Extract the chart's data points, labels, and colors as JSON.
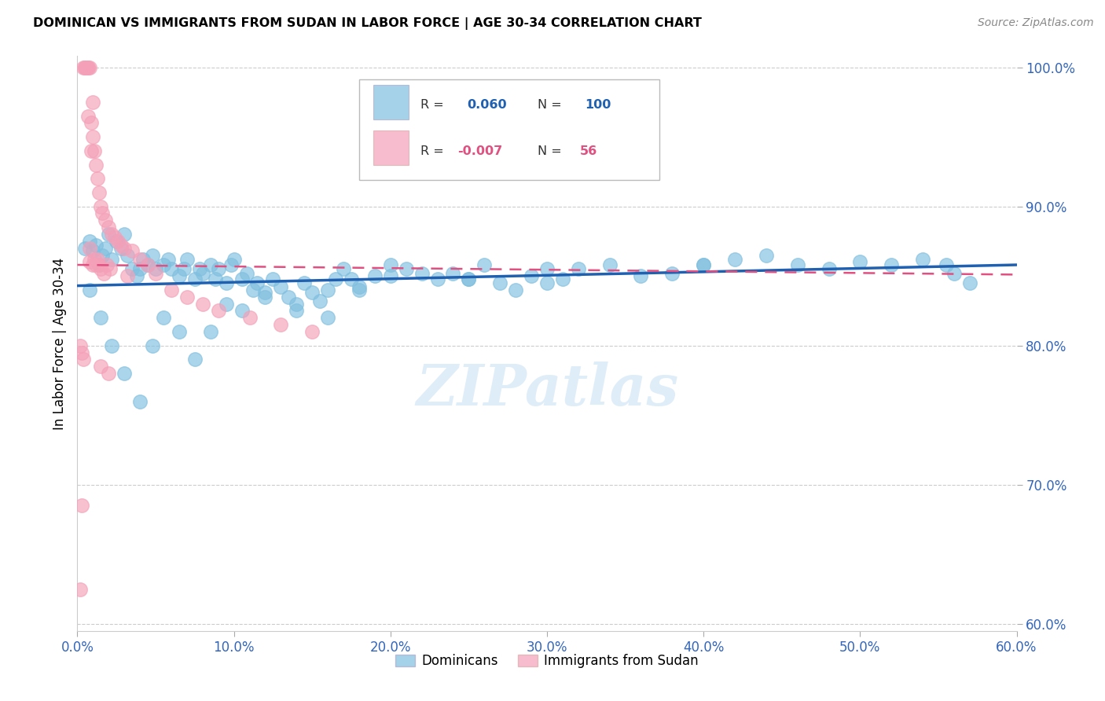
{
  "title": "DOMINICAN VS IMMIGRANTS FROM SUDAN IN LABOR FORCE | AGE 30-34 CORRELATION CHART",
  "source": "Source: ZipAtlas.com",
  "ylabel": "In Labor Force | Age 30-34",
  "xlim": [
    0.0,
    0.6
  ],
  "ylim": [
    0.595,
    1.008
  ],
  "xticks": [
    0.0,
    0.1,
    0.2,
    0.3,
    0.4,
    0.5,
    0.6
  ],
  "xticklabels": [
    "0.0%",
    "10.0%",
    "20.0%",
    "30.0%",
    "40.0%",
    "50.0%",
    "60.0%"
  ],
  "yticks": [
    0.6,
    0.7,
    0.8,
    0.9,
    1.0
  ],
  "yticklabels": [
    "60.0%",
    "70.0%",
    "80.0%",
    "90.0%",
    "100.0%"
  ],
  "blue_color": "#7fbfdf",
  "pink_color": "#f4a0b8",
  "blue_line_color": "#2060b0",
  "pink_line_color": "#e05080",
  "legend_blue_label": "Dominicans",
  "legend_pink_label": "Immigrants from Sudan",
  "R_blue": 0.06,
  "N_blue": 100,
  "R_pink": -0.007,
  "N_pink": 56,
  "blue_trend_y0": 0.843,
  "blue_trend_y1": 0.858,
  "pink_trend_y0": 0.858,
  "pink_trend_y1": 0.851,
  "watermark": "ZIPatlas",
  "background_color": "#ffffff",
  "grid_color": "#cccccc",
  "blue_x": [
    0.005,
    0.008,
    0.01,
    0.012,
    0.014,
    0.016,
    0.018,
    0.02,
    0.022,
    0.025,
    0.028,
    0.03,
    0.032,
    0.035,
    0.038,
    0.04,
    0.042,
    0.045,
    0.048,
    0.05,
    0.055,
    0.058,
    0.06,
    0.065,
    0.068,
    0.07,
    0.075,
    0.078,
    0.08,
    0.085,
    0.088,
    0.09,
    0.095,
    0.098,
    0.1,
    0.105,
    0.108,
    0.112,
    0.115,
    0.12,
    0.125,
    0.13,
    0.135,
    0.14,
    0.145,
    0.15,
    0.155,
    0.16,
    0.165,
    0.17,
    0.175,
    0.18,
    0.19,
    0.2,
    0.21,
    0.22,
    0.23,
    0.24,
    0.25,
    0.26,
    0.27,
    0.28,
    0.29,
    0.3,
    0.31,
    0.32,
    0.34,
    0.36,
    0.38,
    0.4,
    0.42,
    0.44,
    0.46,
    0.48,
    0.5,
    0.52,
    0.54,
    0.555,
    0.56,
    0.57,
    0.008,
    0.015,
    0.022,
    0.03,
    0.04,
    0.048,
    0.055,
    0.065,
    0.075,
    0.085,
    0.095,
    0.105,
    0.12,
    0.14,
    0.16,
    0.18,
    0.2,
    0.25,
    0.3,
    0.4
  ],
  "blue_y": [
    0.87,
    0.875,
    0.868,
    0.872,
    0.858,
    0.865,
    0.87,
    0.88,
    0.862,
    0.875,
    0.87,
    0.88,
    0.865,
    0.855,
    0.85,
    0.855,
    0.862,
    0.858,
    0.865,
    0.855,
    0.858,
    0.862,
    0.855,
    0.85,
    0.855,
    0.862,
    0.848,
    0.855,
    0.852,
    0.858,
    0.848,
    0.855,
    0.845,
    0.858,
    0.862,
    0.848,
    0.852,
    0.84,
    0.845,
    0.838,
    0.848,
    0.842,
    0.835,
    0.83,
    0.845,
    0.838,
    0.832,
    0.84,
    0.848,
    0.855,
    0.848,
    0.842,
    0.85,
    0.858,
    0.855,
    0.852,
    0.848,
    0.852,
    0.848,
    0.858,
    0.845,
    0.84,
    0.85,
    0.845,
    0.848,
    0.855,
    0.858,
    0.85,
    0.852,
    0.858,
    0.862,
    0.865,
    0.858,
    0.855,
    0.86,
    0.858,
    0.862,
    0.858,
    0.852,
    0.845,
    0.84,
    0.82,
    0.8,
    0.78,
    0.76,
    0.8,
    0.82,
    0.81,
    0.79,
    0.81,
    0.83,
    0.825,
    0.835,
    0.825,
    0.82,
    0.84,
    0.85,
    0.848,
    0.855,
    0.858
  ],
  "pink_x": [
    0.002,
    0.003,
    0.004,
    0.005,
    0.005,
    0.006,
    0.006,
    0.007,
    0.007,
    0.007,
    0.008,
    0.008,
    0.008,
    0.009,
    0.009,
    0.01,
    0.01,
    0.01,
    0.011,
    0.011,
    0.012,
    0.012,
    0.013,
    0.013,
    0.014,
    0.014,
    0.015,
    0.015,
    0.016,
    0.017,
    0.018,
    0.019,
    0.02,
    0.021,
    0.022,
    0.024,
    0.026,
    0.028,
    0.03,
    0.032,
    0.035,
    0.04,
    0.045,
    0.05,
    0.06,
    0.07,
    0.08,
    0.09,
    0.11,
    0.13,
    0.15,
    0.002,
    0.003,
    0.004,
    0.015,
    0.02
  ],
  "pink_y": [
    0.625,
    0.685,
    1.0,
    1.0,
    1.0,
    1.0,
    1.0,
    1.0,
    1.0,
    0.965,
    1.0,
    0.87,
    0.86,
    0.96,
    0.94,
    0.975,
    0.858,
    0.95,
    0.94,
    0.862,
    0.93,
    0.858,
    0.92,
    0.862,
    0.91,
    0.858,
    0.9,
    0.855,
    0.895,
    0.852,
    0.89,
    0.858,
    0.885,
    0.855,
    0.88,
    0.878,
    0.875,
    0.872,
    0.87,
    0.85,
    0.868,
    0.862,
    0.858,
    0.852,
    0.84,
    0.835,
    0.83,
    0.825,
    0.82,
    0.815,
    0.81,
    0.8,
    0.795,
    0.79,
    0.785,
    0.78
  ]
}
